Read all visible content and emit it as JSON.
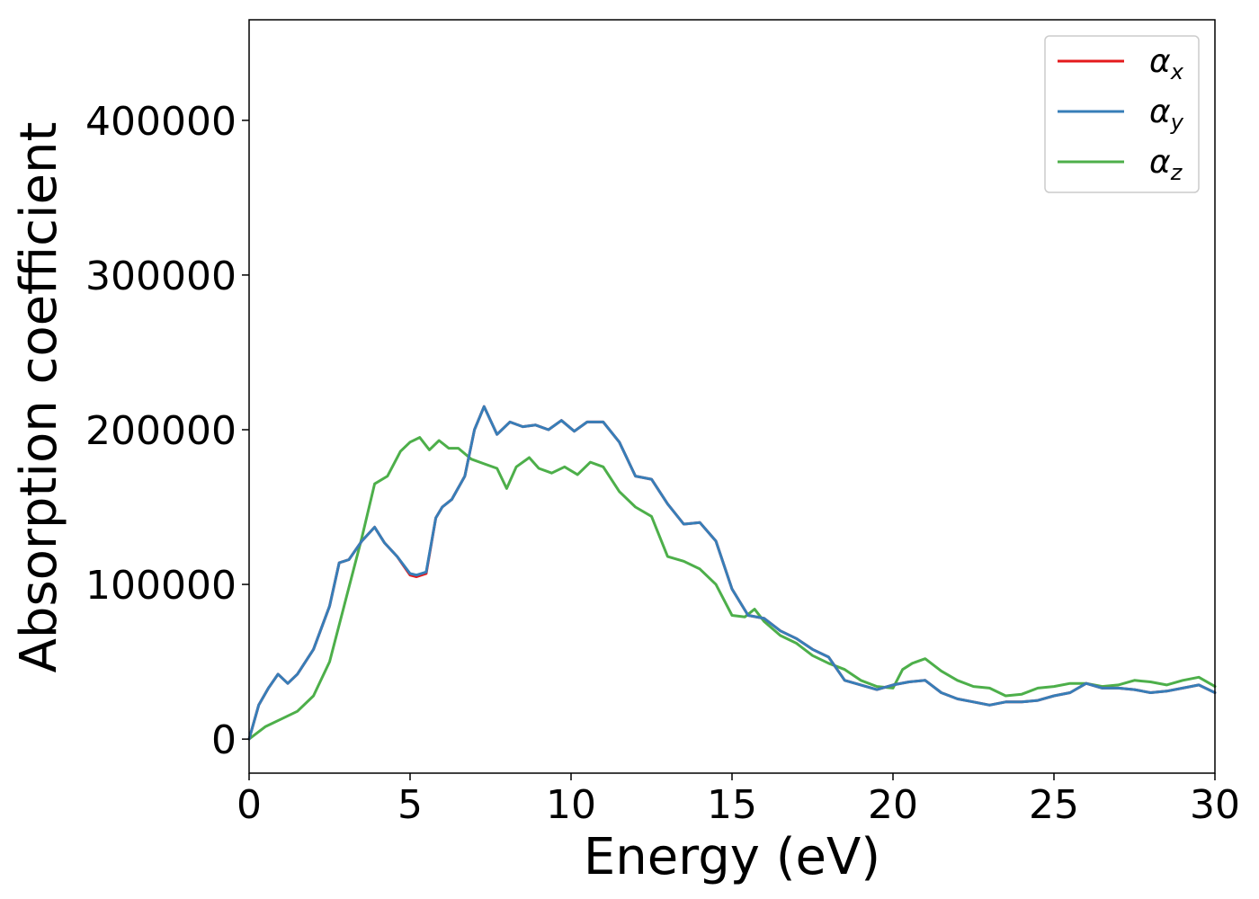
{
  "chart_data": {
    "type": "line",
    "xlabel": "Energy (eV)",
    "ylabel": "Absorption coefficient",
    "xlim": [
      0,
      30
    ],
    "ylim": [
      -22000,
      465000
    ],
    "xticks": [
      0,
      5,
      10,
      15,
      20,
      25,
      30
    ],
    "xtick_labels": [
      "0",
      "5",
      "10",
      "15",
      "20",
      "25",
      "30"
    ],
    "yticks": [
      0,
      100000,
      200000,
      300000,
      400000
    ],
    "ytick_labels": [
      "0",
      "100000",
      "200000",
      "300000",
      "400000"
    ],
    "grid": false,
    "legend": {
      "placement": "top-right",
      "entries": [
        {
          "symbol": "α",
          "sub": "x",
          "color": "#e41a1c"
        },
        {
          "symbol": "α",
          "sub": "y",
          "color": "#377eb8"
        },
        {
          "symbol": "α",
          "sub": "z",
          "color": "#4daf4a"
        }
      ]
    },
    "series": [
      {
        "color": "#e41a1c",
        "x": [
          0,
          0.3,
          0.6,
          0.9,
          1.2,
          1.5,
          2.0,
          2.5,
          2.8,
          3.1,
          3.5,
          3.9,
          4.2,
          4.6,
          5.0,
          5.2,
          5.5,
          5.8,
          6.0,
          6.3,
          6.7,
          7.0,
          7.3,
          7.7,
          8.1,
          8.5,
          8.9,
          9.3,
          9.7,
          10.1,
          10.5,
          11.0,
          11.5,
          12.0,
          12.5,
          13.0,
          13.5,
          14.0,
          14.5,
          15.0,
          15.5,
          16.0,
          16.5,
          17.0,
          17.5,
          18.0,
          18.5,
          19.0,
          19.5,
          20.0,
          20.5,
          21.0,
          21.5,
          22.0,
          22.5,
          23.0,
          23.5,
          24.0,
          24.5,
          25.0,
          25.5,
          26.0,
          26.5,
          27.0,
          27.5,
          28.0,
          28.5,
          29.0,
          29.5,
          30.0
        ],
        "values": [
          0,
          22000,
          33000,
          42000,
          36000,
          42000,
          58000,
          86000,
          114000,
          116000,
          128000,
          137000,
          127000,
          118000,
          106000,
          105000,
          107000,
          143000,
          150000,
          155000,
          170000,
          200000,
          215000,
          197000,
          205000,
          202000,
          203000,
          200000,
          206000,
          199000,
          205000,
          205000,
          192000,
          170000,
          168000,
          152000,
          139000,
          140000,
          128000,
          97000,
          80000,
          78000,
          70000,
          65000,
          58000,
          53000,
          38000,
          35000,
          32000,
          35000,
          37000,
          38000,
          30000,
          26000,
          24000,
          22000,
          24000,
          24000,
          25000,
          28000,
          30000,
          36000,
          33000,
          33000,
          32000,
          30000,
          31000,
          33000,
          35000,
          30000
        ]
      },
      {
        "color": "#377eb8",
        "x": [
          0,
          0.3,
          0.6,
          0.9,
          1.2,
          1.5,
          2.0,
          2.5,
          2.8,
          3.1,
          3.5,
          3.9,
          4.2,
          4.6,
          5.0,
          5.2,
          5.5,
          5.8,
          6.0,
          6.3,
          6.7,
          7.0,
          7.3,
          7.7,
          8.1,
          8.5,
          8.9,
          9.3,
          9.7,
          10.1,
          10.5,
          11.0,
          11.5,
          12.0,
          12.5,
          13.0,
          13.5,
          14.0,
          14.5,
          15.0,
          15.5,
          16.0,
          16.5,
          17.0,
          17.5,
          18.0,
          18.5,
          19.0,
          19.5,
          20.0,
          20.5,
          21.0,
          21.5,
          22.0,
          22.5,
          23.0,
          23.5,
          24.0,
          24.5,
          25.0,
          25.5,
          26.0,
          26.5,
          27.0,
          27.5,
          28.0,
          28.5,
          29.0,
          29.5,
          30.0
        ],
        "values": [
          0,
          22000,
          33000,
          42000,
          36000,
          42000,
          58000,
          86000,
          114000,
          116000,
          128000,
          137000,
          127000,
          118000,
          107000,
          106000,
          108000,
          143000,
          150000,
          155000,
          170000,
          200000,
          215000,
          197000,
          205000,
          202000,
          203000,
          200000,
          206000,
          199000,
          205000,
          205000,
          192000,
          170000,
          168000,
          152000,
          139000,
          140000,
          128000,
          97000,
          80000,
          78000,
          70000,
          65000,
          58000,
          53000,
          38000,
          35000,
          32000,
          35000,
          37000,
          38000,
          30000,
          26000,
          24000,
          22000,
          24000,
          24000,
          25000,
          28000,
          30000,
          36000,
          33000,
          33000,
          32000,
          30000,
          31000,
          33000,
          35000,
          30000
        ]
      },
      {
        "color": "#4daf4a",
        "x": [
          0,
          0.5,
          1.0,
          1.5,
          2.0,
          2.5,
          3.0,
          3.5,
          3.9,
          4.3,
          4.7,
          5.0,
          5.3,
          5.6,
          5.9,
          6.2,
          6.5,
          6.9,
          7.3,
          7.7,
          8.0,
          8.3,
          8.7,
          9.0,
          9.4,
          9.8,
          10.2,
          10.6,
          11.0,
          11.5,
          12.0,
          12.5,
          13.0,
          13.5,
          14.0,
          14.5,
          15.0,
          15.4,
          15.7,
          16.0,
          16.5,
          17.0,
          17.5,
          18.0,
          18.5,
          19.0,
          19.5,
          20.0,
          20.3,
          20.6,
          21.0,
          21.5,
          22.0,
          22.5,
          23.0,
          23.5,
          24.0,
          24.5,
          25.0,
          25.5,
          26.0,
          26.5,
          27.0,
          27.5,
          28.0,
          28.5,
          29.0,
          29.5,
          30.0
        ],
        "values": [
          0,
          8000,
          13000,
          18000,
          28000,
          50000,
          90000,
          130000,
          165000,
          170000,
          186000,
          192000,
          195000,
          187000,
          193000,
          188000,
          188000,
          181000,
          178000,
          175000,
          162000,
          176000,
          182000,
          175000,
          172000,
          176000,
          171000,
          179000,
          176000,
          160000,
          150000,
          144000,
          118000,
          115000,
          110000,
          100000,
          80000,
          79000,
          84000,
          76000,
          67000,
          62000,
          54000,
          49000,
          45000,
          38000,
          34000,
          33000,
          45000,
          49000,
          52000,
          44000,
          38000,
          34000,
          33000,
          28000,
          29000,
          33000,
          34000,
          36000,
          36000,
          34000,
          35000,
          38000,
          37000,
          35000,
          38000,
          40000,
          34000
        ]
      }
    ]
  }
}
